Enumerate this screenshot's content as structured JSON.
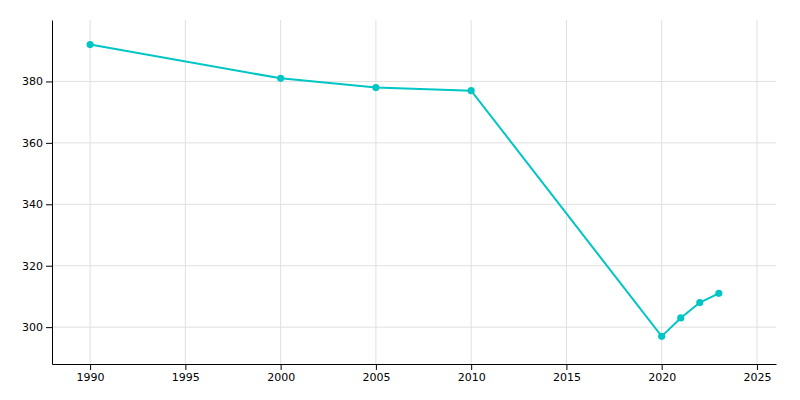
{
  "chart_data": {
    "type": "line",
    "x": [
      1990,
      2000,
      2005,
      2010,
      2020,
      2021,
      2022,
      2023
    ],
    "values": [
      392,
      381,
      378,
      377,
      297,
      303,
      308,
      311
    ],
    "color": "#00C5C5",
    "marker": "circle",
    "xlim": [
      1988,
      2026
    ],
    "ylim": [
      288,
      400
    ],
    "xticks": [
      1990,
      1995,
      2000,
      2005,
      2010,
      2015,
      2020,
      2025
    ],
    "yticks": [
      300,
      320,
      340,
      360,
      380
    ],
    "grid": true
  }
}
